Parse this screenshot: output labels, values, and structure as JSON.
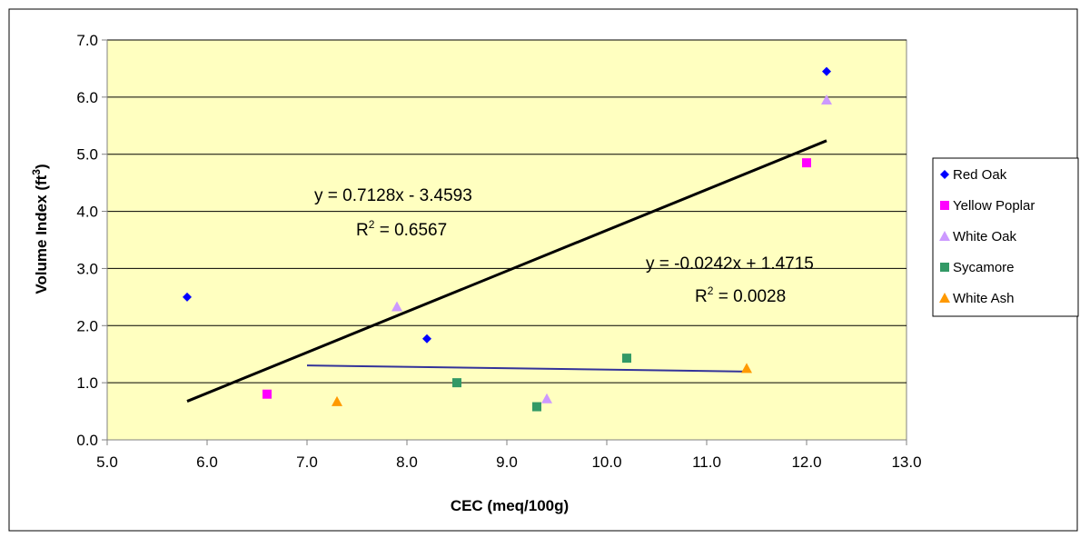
{
  "chart_data": {
    "type": "scatter",
    "xlabel": "CEC (meq/100g)",
    "ylabel_main": "Volume Index (ft",
    "ylabel_sup": "3",
    "ylabel_close": ")",
    "xlim": [
      5.0,
      13.0
    ],
    "ylim": [
      0.0,
      7.0
    ],
    "x_ticks": [
      "5.0",
      "6.0",
      "7.0",
      "8.0",
      "9.0",
      "10.0",
      "11.0",
      "12.0",
      "13.0"
    ],
    "y_ticks": [
      "0.0",
      "1.0",
      "2.0",
      "3.0",
      "4.0",
      "5.0",
      "6.0",
      "7.0"
    ],
    "grid": "horizontal",
    "plot_background": "#FFFFC0",
    "legend_position": "right",
    "series": [
      {
        "name": "Red Oak",
        "marker": "diamond",
        "color": "#0000FF",
        "points": [
          [
            5.8,
            2.5
          ],
          [
            8.2,
            1.77
          ],
          [
            12.2,
            6.45
          ]
        ]
      },
      {
        "name": "Yellow Poplar",
        "marker": "square",
        "color": "#FF00FF",
        "points": [
          [
            6.6,
            0.8
          ],
          [
            12.0,
            4.85
          ]
        ]
      },
      {
        "name": "White Oak",
        "marker": "triangle",
        "color": "#CC99FF",
        "points": [
          [
            7.9,
            2.33
          ],
          [
            9.4,
            0.72
          ],
          [
            12.2,
            5.95
          ]
        ]
      },
      {
        "name": "Sycamore",
        "marker": "square",
        "color": "#339966",
        "points": [
          [
            8.5,
            1.0
          ],
          [
            9.3,
            0.58
          ],
          [
            10.2,
            1.43
          ]
        ]
      },
      {
        "name": "White Ash",
        "marker": "triangle",
        "color": "#FF9900",
        "points": [
          [
            7.3,
            0.67
          ],
          [
            11.4,
            1.25
          ]
        ]
      }
    ],
    "trendlines": [
      {
        "color": "#000000",
        "slope": 0.7128,
        "intercept": -3.4593,
        "x_range": [
          5.8,
          12.2
        ],
        "equation": "y = 0.7128x - 3.4593",
        "r2_label": "R",
        "r2_sup": "2",
        "r2_value": " = 0.6567"
      },
      {
        "color": "#333399",
        "slope": -0.0242,
        "intercept": 1.4715,
        "x_range": [
          7.0,
          11.4
        ],
        "equation": "y = -0.0242x + 1.4715",
        "r2_label": "R",
        "r2_sup": "2",
        "r2_value": " = 0.0028"
      }
    ]
  }
}
